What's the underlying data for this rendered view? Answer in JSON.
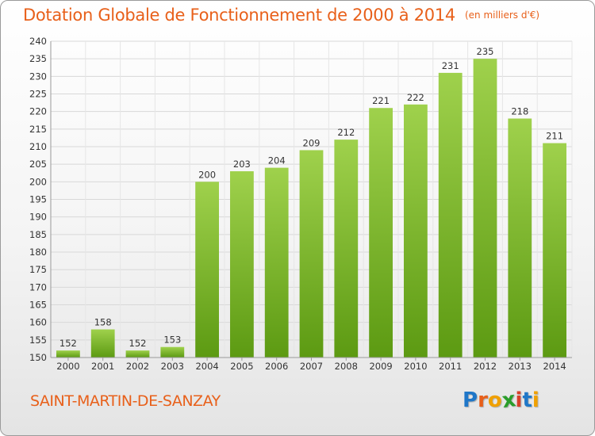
{
  "header": {
    "title": "Dotation Globale de Fonctionnement de 2000 à 2014",
    "unit": "(en milliers d'€)"
  },
  "footer": {
    "commune": "SAINT-MARTIN-DE-SANZAY",
    "logo": "Proxiti",
    "logo_letters": [
      {
        "ch": "P",
        "color": "#1f77c8"
      },
      {
        "ch": "r",
        "color": "#e8601a"
      },
      {
        "ch": "o",
        "color": "#f0a000"
      },
      {
        "ch": "x",
        "color": "#2a9d2a"
      },
      {
        "ch": "i",
        "color": "#d8402a"
      },
      {
        "ch": "t",
        "color": "#1f77c8"
      },
      {
        "ch": "i",
        "color": "#f0a000"
      }
    ]
  },
  "chart_data": {
    "type": "bar",
    "title": "Dotation Globale de Fonctionnement de 2000 à 2014",
    "subtitle": "(en milliers d'€)",
    "categories": [
      "2000",
      "2001",
      "2002",
      "2003",
      "2004",
      "2005",
      "2006",
      "2007",
      "2008",
      "2009",
      "2010",
      "2011",
      "2012",
      "2013",
      "2014"
    ],
    "values": [
      152,
      158,
      152,
      153,
      200,
      203,
      204,
      209,
      212,
      221,
      222,
      231,
      235,
      218,
      211
    ],
    "ylim": [
      150,
      240
    ],
    "yticks": [
      150,
      155,
      160,
      165,
      170,
      175,
      180,
      185,
      190,
      195,
      200,
      205,
      210,
      215,
      220,
      225,
      230,
      235,
      240
    ],
    "grid": true,
    "colors": {
      "bar_top": "#9fd14c",
      "bar_bottom": "#5c9a12",
      "grid": "#d8d8d8",
      "axis_text": "#333333"
    }
  }
}
